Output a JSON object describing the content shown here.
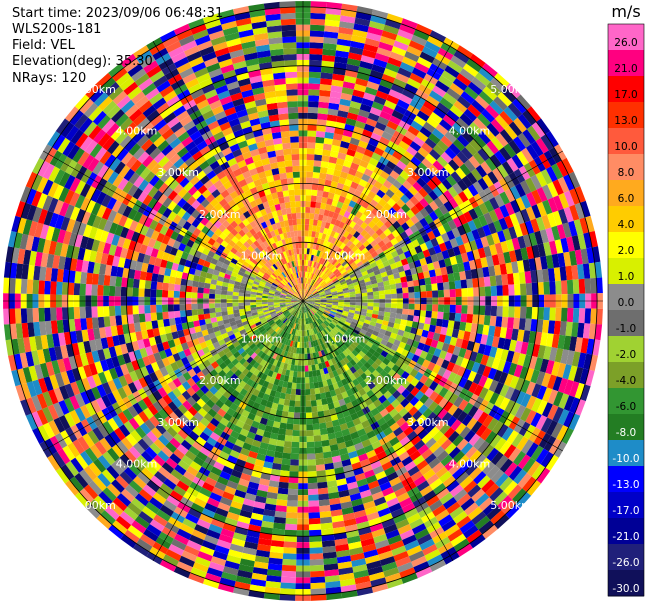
{
  "header": {
    "start_time": "Start time: 2023/09/06 06:48:31",
    "instrument": "WLS200s-181",
    "field": "Field: VEL",
    "elevation": "Elevation(deg): 35.30",
    "nrays": "NRays: 120"
  },
  "chart_data": {
    "type": "heatmap",
    "subtype": "polar-ppi",
    "field": "VEL",
    "units": "m/s",
    "n_rays": 120,
    "elevation_deg": 35.3,
    "range_ring_labels": [
      "1.00km",
      "2.00km",
      "3.00km",
      "4.00km",
      "5.00km"
    ],
    "range_rings_km": [
      1,
      2,
      3,
      4,
      5
    ],
    "colorbar": {
      "label": "m/s",
      "tick_labels": [
        "26.0",
        "21.0",
        "17.0",
        "13.0",
        "10.0",
        "8.0",
        "6.0",
        "4.0",
        "2.0",
        "1.0",
        "0.0",
        "-1.0",
        "-2.0",
        "-4.0",
        "-6.0",
        "-8.0",
        "-10.0",
        "-13.0",
        "-17.0",
        "-21.0",
        "-26.0",
        "-30.0"
      ],
      "colors": [
        "#ff66c8",
        "#ff0080",
        "#ff0000",
        "#ff3000",
        "#ff5a3c",
        "#ff8c64",
        "#ffaa1e",
        "#ffcc00",
        "#ffff00",
        "#d8f000",
        "#8c8c8c",
        "#6e6e6e",
        "#a0d232",
        "#7ca028",
        "#329632",
        "#237d23",
        "#1e8cc8",
        "#0000ff",
        "#0000c8",
        "#000096",
        "#20207a",
        "#10105a"
      ]
    },
    "near_range_pattern": {
      "north_sector_m_s": [
        2.0,
        8.0
      ],
      "east_sector_m_s": [
        -1.0,
        1.0
      ],
      "south_sector_m_s": [
        -8.0,
        -2.0
      ],
      "west_sector_m_s": [
        -1.0,
        1.0
      ]
    }
  }
}
